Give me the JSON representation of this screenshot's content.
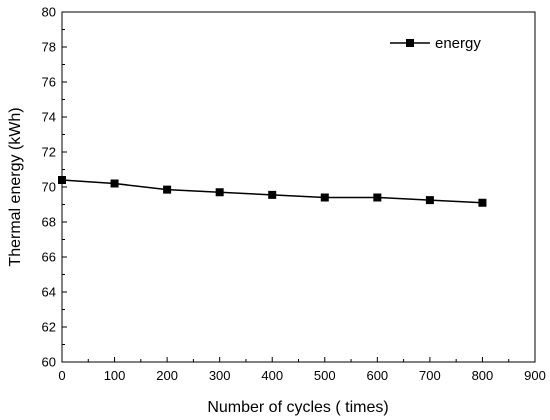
{
  "chart_data": {
    "type": "line",
    "title": "",
    "xlabel": "Number of cycles ( times)",
    "ylabel": "Thermal energy (kWh)",
    "xlim": [
      0,
      900
    ],
    "ylim": [
      60,
      80
    ],
    "x_ticks": [
      0,
      100,
      200,
      300,
      400,
      500,
      600,
      700,
      800,
      900
    ],
    "y_ticks": [
      60,
      62,
      64,
      66,
      68,
      70,
      72,
      74,
      76,
      78,
      80
    ],
    "grid": false,
    "legend_position": "top-right",
    "series": [
      {
        "name": "energy",
        "color": "#000000",
        "marker": "square",
        "x": [
          0,
          100,
          200,
          300,
          400,
          500,
          600,
          700,
          800
        ],
        "y": [
          70.4,
          70.2,
          69.85,
          69.7,
          69.55,
          69.4,
          69.4,
          69.25,
          69.1
        ]
      }
    ]
  }
}
